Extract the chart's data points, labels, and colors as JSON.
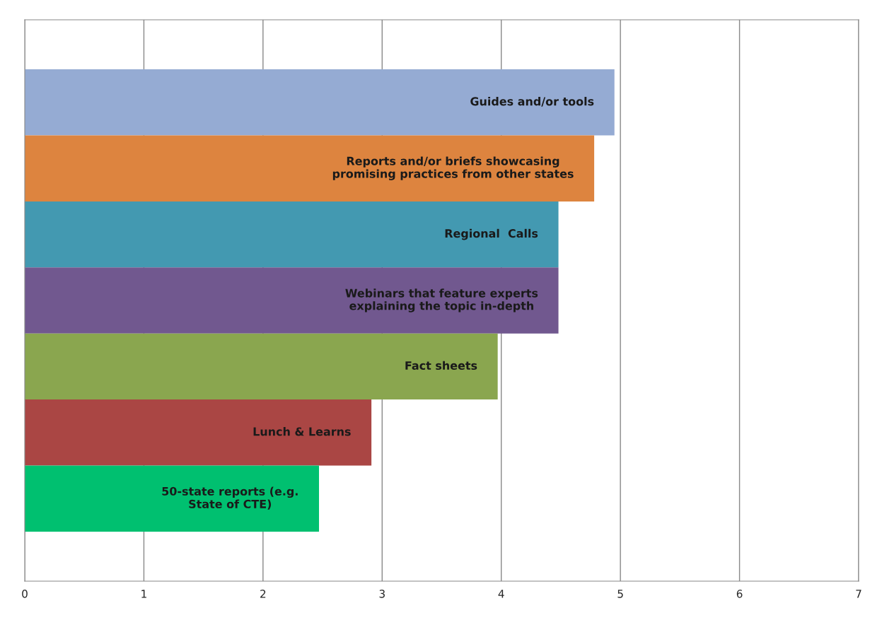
{
  "chart_data": {
    "type": "bar",
    "orientation": "horizontal",
    "categories": [
      "Guides and/or tools",
      "Reports and/or briefs showcasing\npromising practices from other states",
      "Regional  Calls",
      "Webinars that feature experts\nexplaining the topic in-depth",
      "Fact sheets",
      "Lunch & Learns",
      "50-state reports (e.g.\nState of CTE)"
    ],
    "values": [
      4.95,
      4.78,
      4.48,
      4.48,
      3.97,
      2.91,
      2.47
    ],
    "colors": [
      "#95abd3",
      "#dd843f",
      "#4399b1",
      "#71588f",
      "#8aa64f",
      "#aa4644",
      "#00c070"
    ],
    "xlim": [
      0,
      7
    ],
    "xticks": [
      0,
      1,
      2,
      3,
      4,
      5,
      6,
      7
    ],
    "grid": "x",
    "tick_labels": "x"
  }
}
